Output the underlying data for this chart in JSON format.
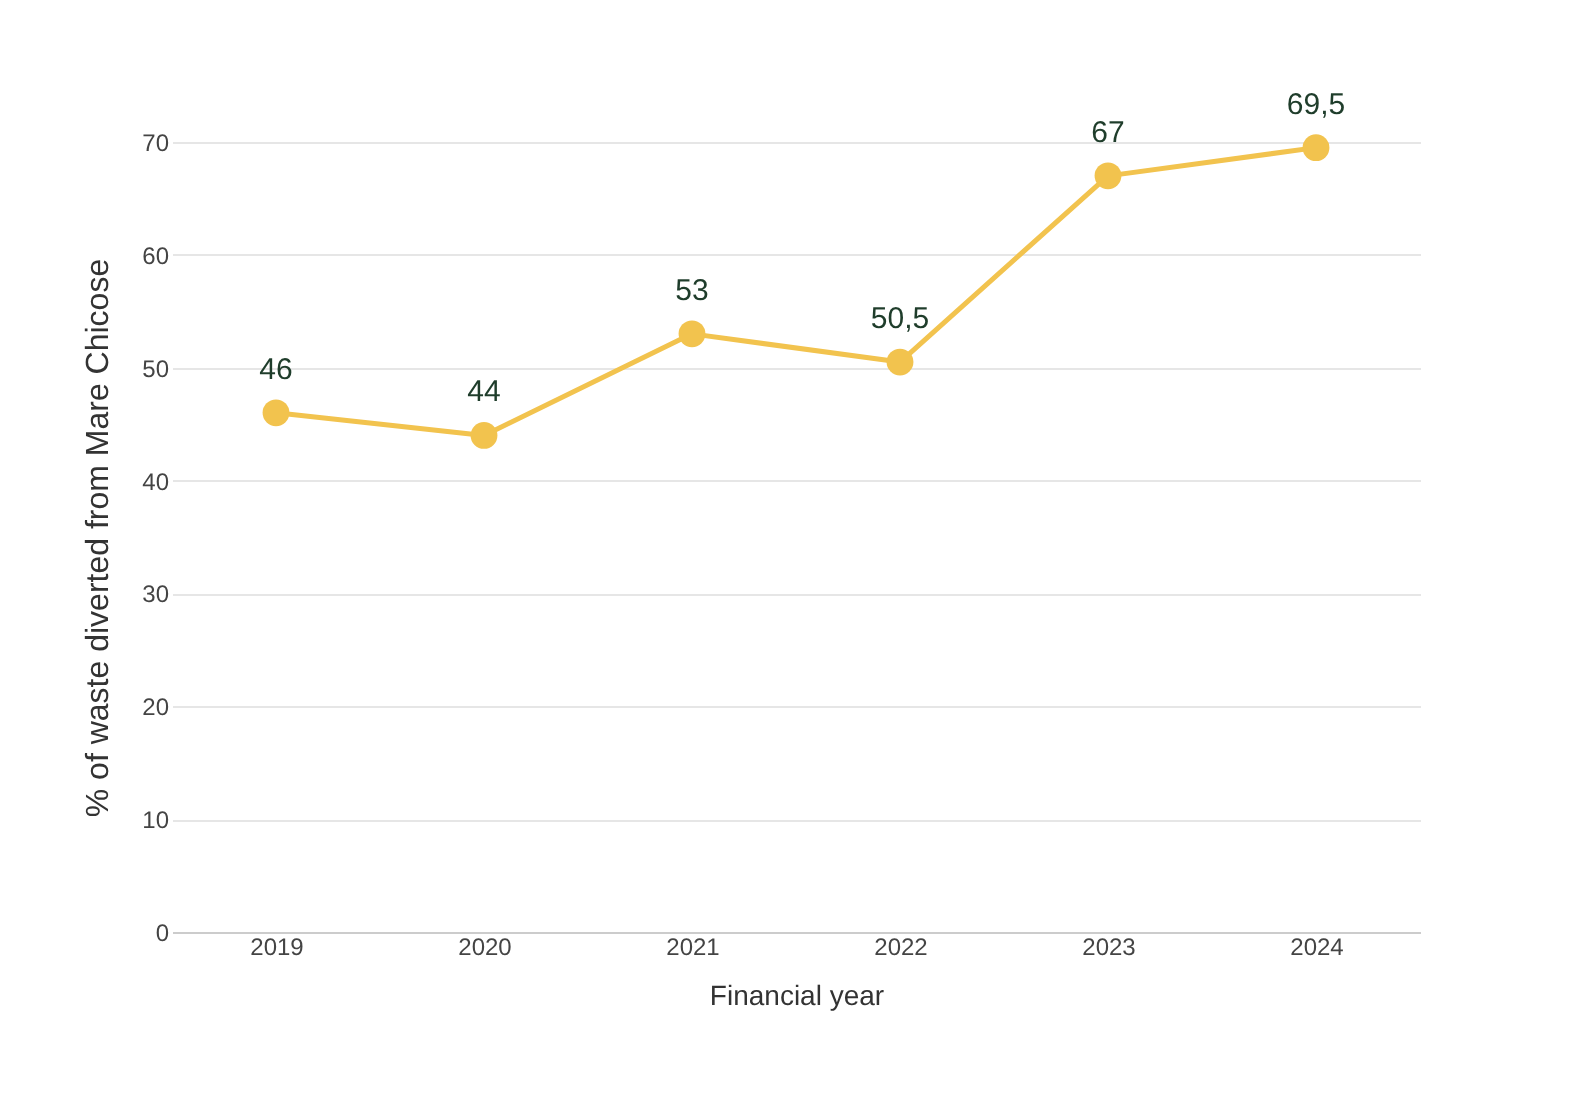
{
  "chart_data": {
    "type": "line",
    "xlabel": "Financial year",
    "ylabel": "% of waste diverted from Mare Chicose",
    "categories": [
      "2019",
      "2020",
      "2021",
      "2022",
      "2023",
      "2024"
    ],
    "series": [
      {
        "color": "#f2c34e",
        "values": [
          46,
          44,
          53,
          50.5,
          67,
          69.5
        ]
      }
    ],
    "value_labels": [
      "46",
      "44",
      "53",
      "50,5",
      "67",
      "69,5"
    ],
    "ylim": [
      0,
      70
    ],
    "yticks": [
      0,
      10,
      20,
      30,
      40,
      50,
      60,
      70
    ],
    "grid": "y",
    "marker": "circle"
  }
}
